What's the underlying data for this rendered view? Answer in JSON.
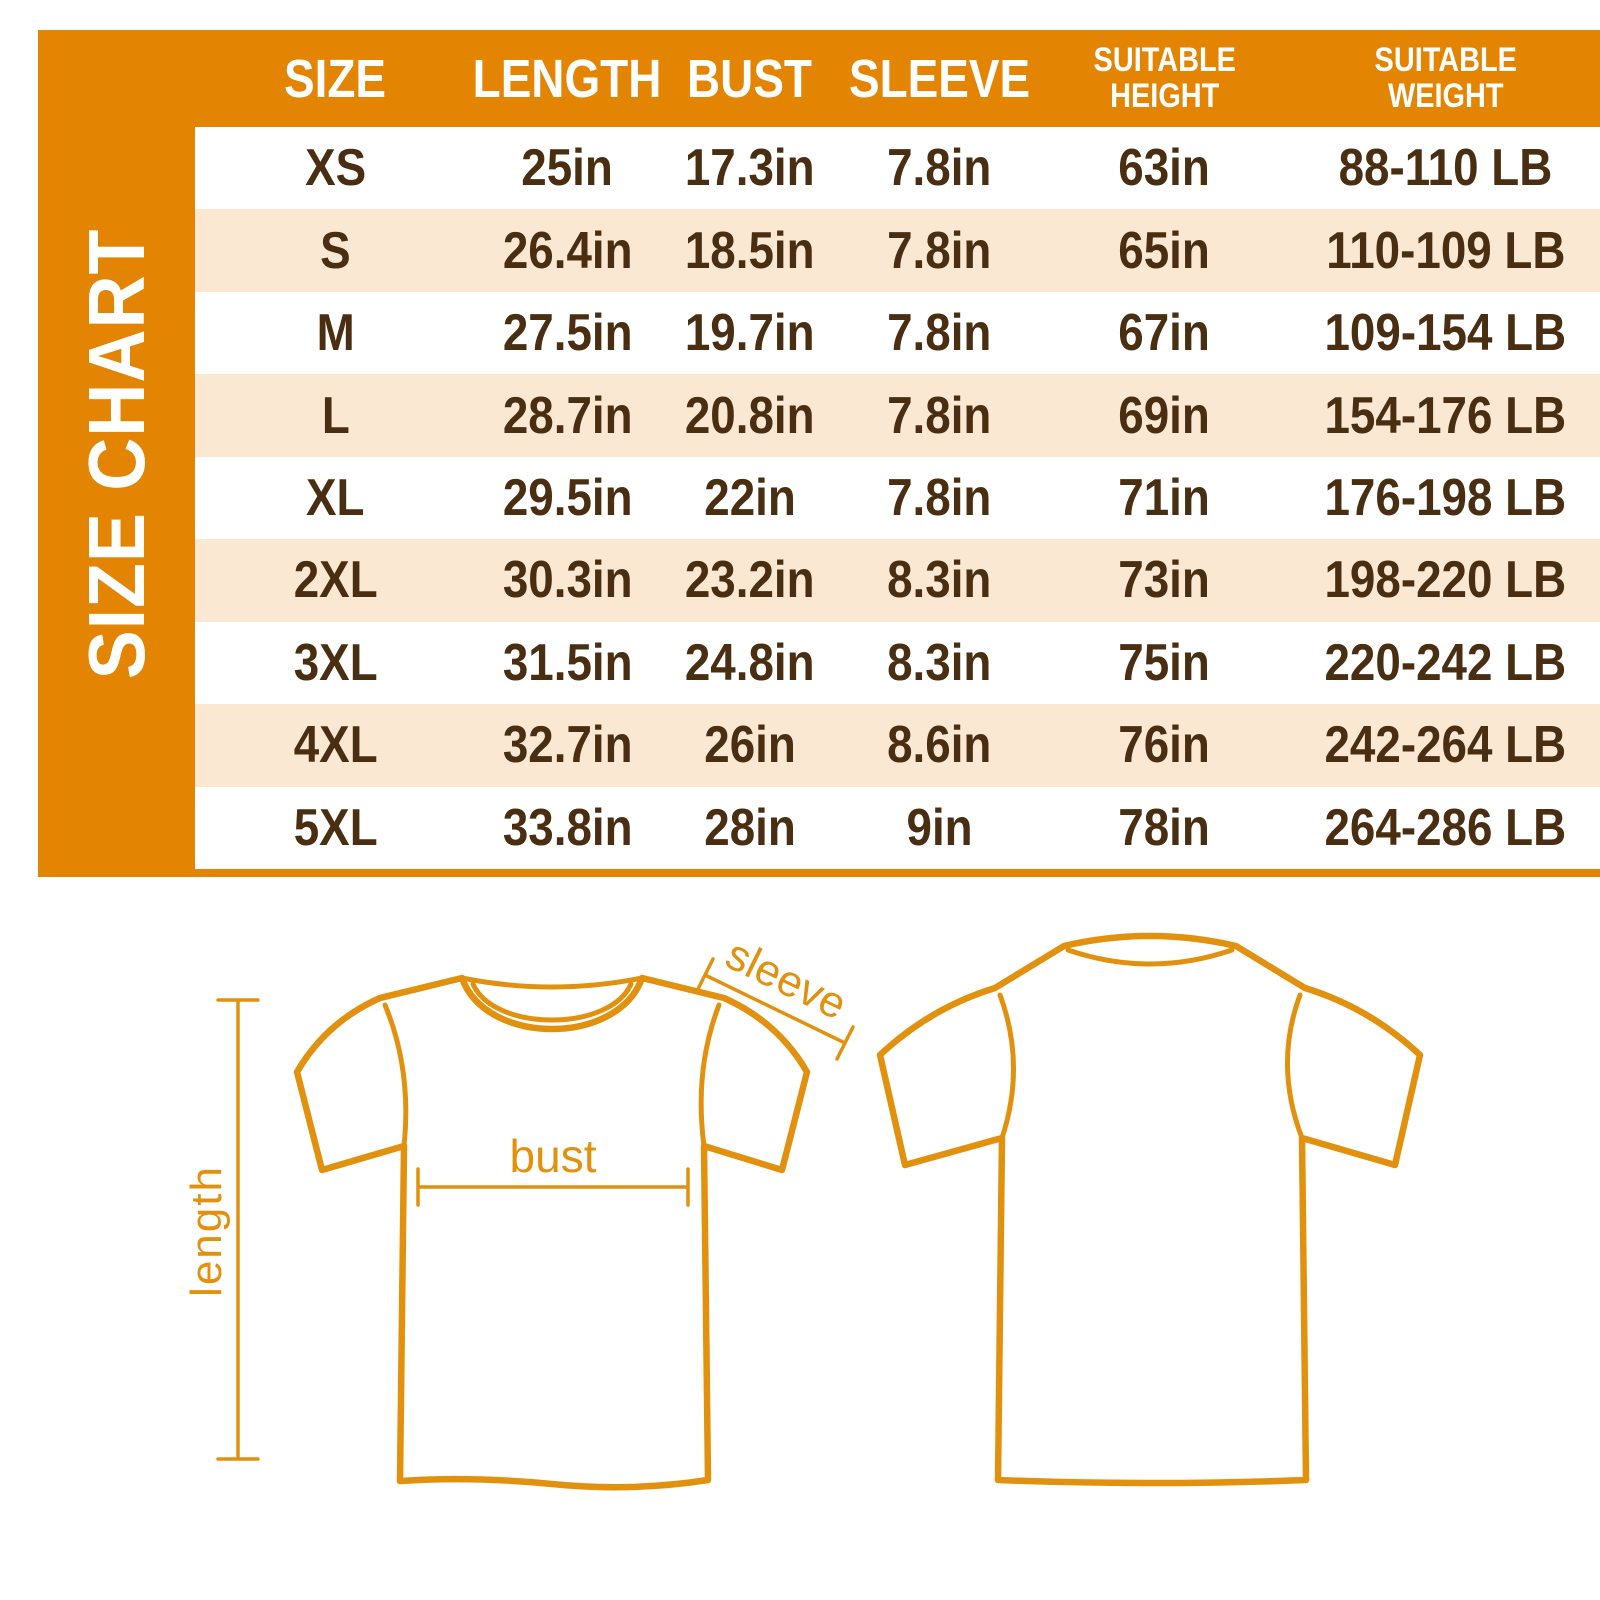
{
  "sidebar": {
    "title": "SIZE CHART"
  },
  "table": {
    "header": [
      "SIZE",
      "LENGTH",
      "BUST",
      "SLEEVE",
      "SUITABLE\nHEIGHT",
      "SUITABLE\nWEIGHT"
    ],
    "rows": [
      [
        "XS",
        "25in",
        "17.3in",
        "7.8in",
        "63in",
        "88-110 LB"
      ],
      [
        "S",
        "26.4in",
        "18.5in",
        "7.8in",
        "65in",
        "110-109 LB"
      ],
      [
        "M",
        "27.5in",
        "19.7in",
        "7.8in",
        "67in",
        "109-154 LB"
      ],
      [
        "L",
        "28.7in",
        "20.8in",
        "7.8in",
        "69in",
        "154-176 LB"
      ],
      [
        "XL",
        "29.5in",
        "22in",
        "7.8in",
        "71in",
        "176-198 LB"
      ],
      [
        "2XL",
        "30.3in",
        "23.2in",
        "8.3in",
        "73in",
        "198-220 LB"
      ],
      [
        "3XL",
        "31.5in",
        "24.8in",
        "8.3in",
        "75in",
        "220-242 LB"
      ],
      [
        "4XL",
        "32.7in",
        "26in",
        "8.6in",
        "76in",
        "242-264 LB"
      ],
      [
        "5XL",
        "33.8in",
        "28in",
        "9in",
        "78in",
        "264-286 LB"
      ]
    ]
  },
  "diagram": {
    "sleeve_label": "sleeve",
    "bust_label": "bust",
    "length_label": "length"
  },
  "colors": {
    "panel_orange": "#E38403",
    "row_white": "#FFFFFF",
    "row_beige": "#FAE8D2",
    "text_brown": "#492E12",
    "header_text": "#FFFFFF",
    "outline_orange": "#E2910F"
  }
}
